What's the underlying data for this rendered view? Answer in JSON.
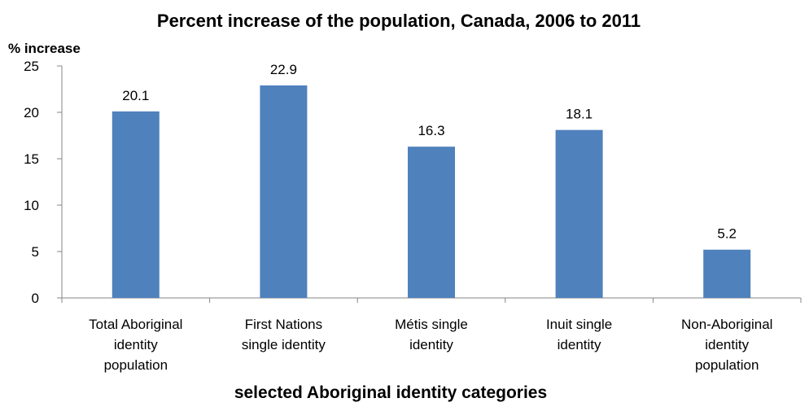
{
  "chart_data": {
    "type": "bar",
    "title": "Percent increase of the population, Canada, 2006 to 2011",
    "ylabel": "% increase",
    "xlabel": "selected Aboriginal identity categories",
    "categories": [
      [
        "Total Aboriginal",
        "identity",
        "population"
      ],
      [
        "First Nations",
        "single identity"
      ],
      [
        "Métis single",
        "identity"
      ],
      [
        "Inuit single",
        "identity"
      ],
      [
        "Non-Aboriginal",
        "identity",
        "population"
      ]
    ],
    "values": [
      20.1,
      22.9,
      16.3,
      18.1,
      5.2
    ],
    "value_labels": [
      "20.1",
      "22.9",
      "16.3",
      "18.1",
      "5.2"
    ],
    "ylim": [
      0,
      25
    ],
    "yticks": [
      0,
      5,
      10,
      15,
      20,
      25
    ],
    "grid": false,
    "legend": "none",
    "bar_color": "#4F81BD",
    "axis_color": "#868686"
  }
}
